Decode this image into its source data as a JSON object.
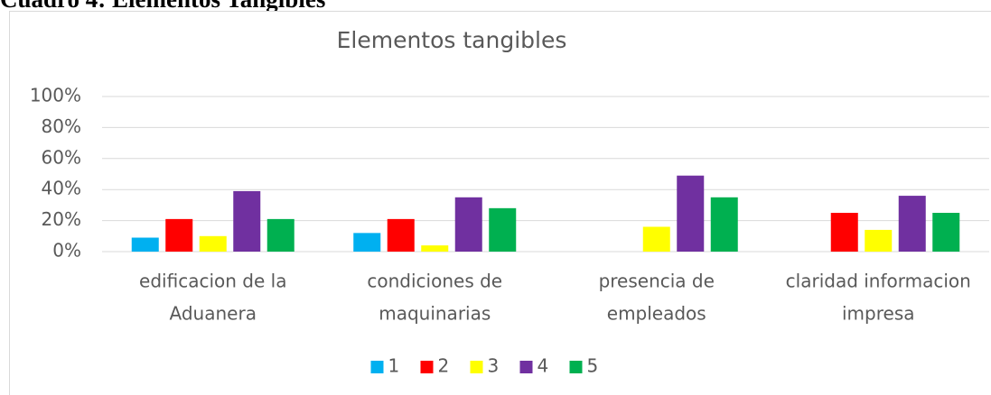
{
  "heading": "Cuadro 4: Elementos Tangibles",
  "chart_data": {
    "type": "bar",
    "title": "Elementos tangibles",
    "categories": [
      [
        "edificacion de la",
        "Aduanera"
      ],
      [
        "condiciones de",
        "maquinarias"
      ],
      [
        "presencia de",
        "empleados"
      ],
      [
        "claridad informacion",
        "impresa"
      ]
    ],
    "series": [
      {
        "name": "1",
        "color": "#00b0f0",
        "values": [
          9,
          12,
          0,
          0
        ]
      },
      {
        "name": "2",
        "color": "#ff0000",
        "values": [
          21,
          21,
          0,
          25
        ]
      },
      {
        "name": "3",
        "color": "#ffff00",
        "values": [
          10,
          4,
          16,
          14
        ]
      },
      {
        "name": "4",
        "color": "#7030a0",
        "values": [
          39,
          35,
          49,
          36
        ]
      },
      {
        "name": "5",
        "color": "#00b050",
        "values": [
          21,
          28,
          35,
          25
        ]
      }
    ],
    "ylim": [
      0,
      100
    ],
    "yticks": [
      {
        "value": 0,
        "label": "0%"
      },
      {
        "value": 20,
        "label": "20%"
      },
      {
        "value": 40,
        "label": "40%"
      },
      {
        "value": 60,
        "label": "60%"
      },
      {
        "value": 80,
        "label": "80%"
      },
      {
        "value": 100,
        "label": "100%"
      }
    ],
    "grid": true,
    "legend": "bottom"
  }
}
